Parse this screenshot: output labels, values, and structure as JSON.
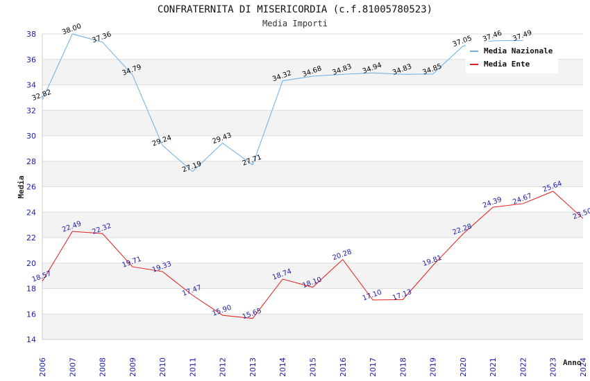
{
  "chart_data": {
    "type": "line",
    "title": "CONFRATERNITA DI MISERICORDIA (c.f.81005780523)",
    "subtitle": "Media Importi",
    "xlabel": "Anno",
    "ylabel": "Media",
    "ylim": [
      14,
      38
    ],
    "yticks": [
      14,
      16,
      18,
      20,
      22,
      24,
      26,
      28,
      30,
      32,
      34,
      36,
      38
    ],
    "x": [
      "2006",
      "2007",
      "2008",
      "2009",
      "2010",
      "2011",
      "2012",
      "2013",
      "2014",
      "2015",
      "2016",
      "2017",
      "2018",
      "2019",
      "2020",
      "2021",
      "2022",
      "2023",
      "2024"
    ],
    "legend_position": "top-right",
    "series": [
      {
        "name": "Media Nazionale",
        "color": "#6aaee6",
        "label_color": "#000000",
        "values": [
          32.82,
          38.0,
          37.36,
          34.79,
          29.24,
          27.19,
          29.43,
          27.71,
          34.32,
          34.68,
          34.83,
          34.94,
          34.83,
          34.85,
          37.05,
          37.46,
          37.49,
          null,
          null
        ],
        "labels": [
          "32.82",
          "38.00",
          "37.36",
          "34.79",
          "29.24",
          "27.19",
          "29.43",
          "27.71",
          "34.32",
          "34.68",
          "34.83",
          "34.94",
          "34.83",
          "34.85",
          "37.05",
          "37.46",
          "37.49",
          "",
          ""
        ]
      },
      {
        "name": "Media Ente",
        "color": "#e31b1b",
        "label_color": "#1a1aa8",
        "values": [
          18.57,
          22.49,
          22.32,
          19.71,
          19.33,
          17.47,
          15.9,
          15.65,
          18.74,
          18.1,
          20.28,
          17.1,
          17.13,
          19.81,
          22.28,
          24.39,
          24.67,
          25.64,
          23.5
        ],
        "labels": [
          "18.57",
          "22.49",
          "22.32",
          "19.71",
          "19.33",
          "17.47",
          "15.90",
          "15.65",
          "18.74",
          "18.10",
          "20.28",
          "17.10",
          "17.13",
          "19.81",
          "22.28",
          "24.39",
          "24.67",
          "25.64",
          "23.50"
        ]
      }
    ],
    "grid": true,
    "band_colors": [
      "#f3f3f3",
      "#ffffff"
    ]
  }
}
